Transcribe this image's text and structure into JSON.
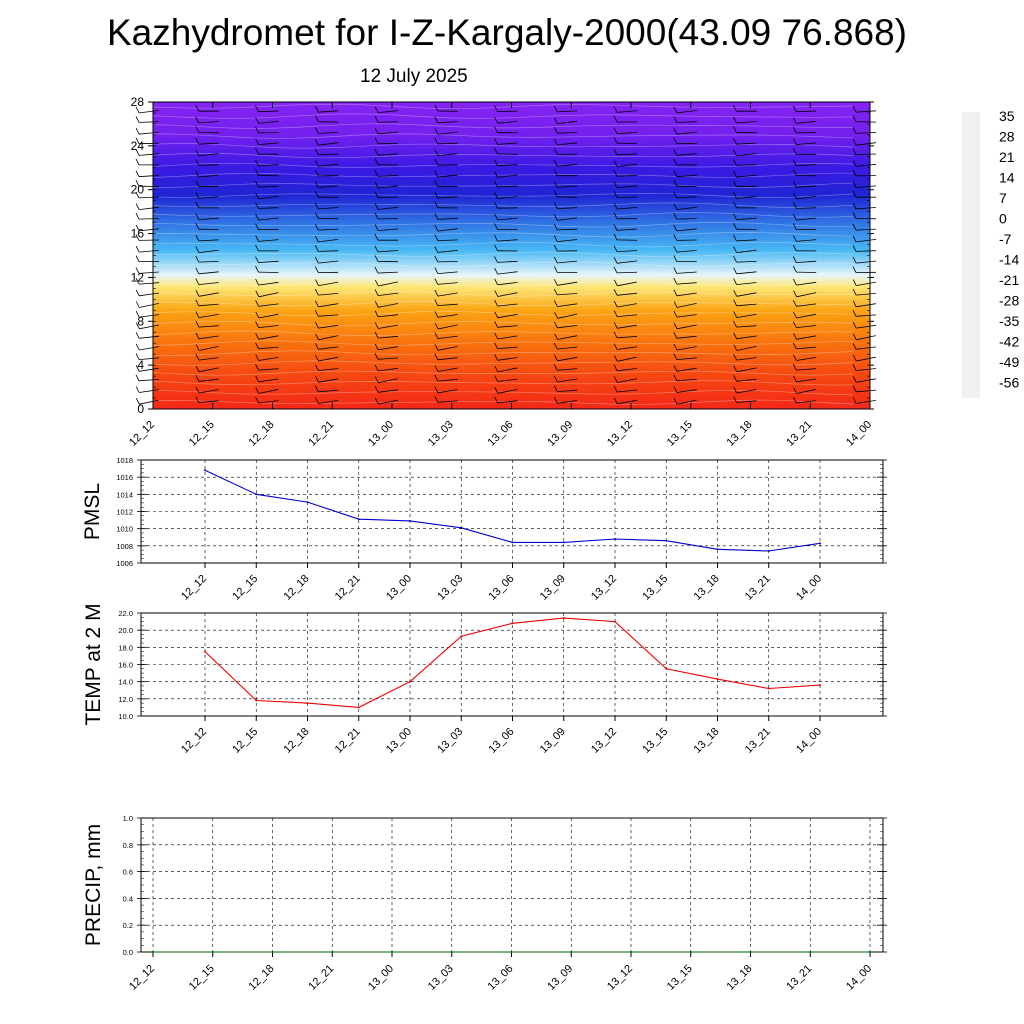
{
  "title": "Kazhydromet for I-Z-Kargaly-2000(43.09 76.868)",
  "subtitle": "12 July 2025",
  "chart_data": [
    {
      "type": "heatmap",
      "name": "temperature-cross-section",
      "x_categories": [
        "12_12",
        "12_15",
        "12_18",
        "12_21",
        "13_00",
        "13_03",
        "13_06",
        "13_09",
        "13_12",
        "13_15",
        "13_18",
        "13_21",
        "14_00"
      ],
      "ylim": [
        0,
        28
      ],
      "y_ticks": [
        0,
        4,
        8,
        12,
        16,
        20,
        24,
        28
      ],
      "colorbar": {
        "labels": [
          "35",
          "28",
          "21",
          "14",
          "7",
          "0",
          "-7",
          "-14",
          "-21",
          "-28",
          "-35",
          "-42",
          "-49",
          "-56"
        ],
        "colors": [
          "#f0f0f0",
          "#ee2020",
          "#f54510",
          "#f87010",
          "#f99a10",
          "#fbc420",
          "#fff090",
          "#f2f5f7",
          "#8fd7f5",
          "#2aa8f0",
          "#3a73e2",
          "#2a38dd",
          "#3a16e0",
          "#7a22ec"
        ]
      },
      "layer_colors": [
        {
          "level": 0,
          "color": "#f42818"
        },
        {
          "level": 3,
          "color": "#f64712"
        },
        {
          "level": 6,
          "color": "#f8720e"
        },
        {
          "level": 9,
          "color": "#fba514"
        },
        {
          "level": 11.2,
          "color": "#fde87a"
        },
        {
          "level": 12.2,
          "color": "#e8f5fa"
        },
        {
          "level": 14.5,
          "color": "#47b8f4"
        },
        {
          "level": 17,
          "color": "#3073e4"
        },
        {
          "level": 19.5,
          "color": "#1f25d3"
        },
        {
          "level": 22,
          "color": "#3a1ae3"
        },
        {
          "level": 25,
          "color": "#7420ee"
        },
        {
          "level": 28,
          "color": "#8424f2"
        }
      ],
      "wind_barbs": true
    },
    {
      "type": "line",
      "name": "pmsl",
      "ylabel": "PMSL",
      "categories": [
        "12_12",
        "12_15",
        "12_18",
        "12_21",
        "13_00",
        "13_03",
        "13_06",
        "13_09",
        "13_12",
        "13_15",
        "13_18",
        "13_21",
        "14_00"
      ],
      "values": [
        1016.8,
        1014.0,
        1013.1,
        1011.1,
        1010.9,
        1010.1,
        1008.4,
        1008.4,
        1008.8,
        1008.6,
        1007.6,
        1007.4,
        1008.3
      ],
      "ylim": [
        1006,
        1018
      ],
      "y_ticks": [
        "1006",
        "1008",
        "1010",
        "1012",
        "1014",
        "1016",
        "1018"
      ],
      "color": "#0000cc",
      "grid": true
    },
    {
      "type": "line",
      "name": "temp-2m",
      "ylabel": "TEMP at 2 M",
      "categories": [
        "12_12",
        "12_15",
        "12_18",
        "12_21",
        "13_00",
        "13_03",
        "13_06",
        "13_09",
        "13_12",
        "13_15",
        "13_18",
        "13_21",
        "14_00"
      ],
      "values": [
        17.5,
        11.8,
        11.5,
        11.0,
        14.0,
        19.3,
        20.8,
        21.4,
        21.0,
        15.5,
        14.3,
        13.2,
        13.6
      ],
      "ylim": [
        10,
        22
      ],
      "y_ticks": [
        "10.0",
        "12.0",
        "14.0",
        "16.0",
        "18.0",
        "20.0",
        "22.0"
      ],
      "color": "#ee0000",
      "grid": true
    },
    {
      "type": "line",
      "name": "precip",
      "ylabel": "PRECIP, mm",
      "categories": [
        "12_12",
        "12_15",
        "12_18",
        "12_21",
        "13_00",
        "13_03",
        "13_06",
        "13_09",
        "13_12",
        "13_15",
        "13_18",
        "13_21",
        "14_00"
      ],
      "values": [
        0,
        0,
        0,
        0,
        0,
        0,
        0,
        0,
        0,
        0,
        0,
        0,
        0
      ],
      "ylim": [
        0,
        1
      ],
      "y_ticks": [
        "0.0",
        "0.2",
        "0.4",
        "0.6",
        "0.8",
        "1.0"
      ],
      "color": "#006600",
      "grid": true
    }
  ]
}
